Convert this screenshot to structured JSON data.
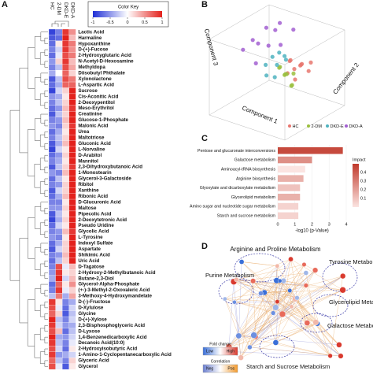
{
  "panel_labels": [
    "A",
    "B",
    "C",
    "D"
  ],
  "chart_data": [
    {
      "type": "heatmap",
      "title": "Color Key",
      "columns": [
        "HC",
        "2-DM",
        "DKD-E",
        "DKD-A"
      ],
      "rows": [
        "Lactic Acid",
        "Harmaline",
        "Hypoxanthine",
        "D-(+)-Fucose",
        "2-Hydroxyglutaric Acid",
        "N-Acetyl-D-Hexosamine",
        "Methyldopa",
        "Diisobutyl Phthalate",
        "Xylonolactone",
        "L-Aspartic Acid",
        "Sucrose",
        "Cis-Aconitic Acid",
        "2-Deoxypentitol",
        "Meso-Erythritol",
        "Creatinine",
        "Glucose-1-Phosphate",
        "Malonic Acid",
        "Urea",
        "Maltotriose",
        "Gluconic Acid",
        "L-Norvaline",
        "D-Arabitol",
        "Mannitol",
        "2,3-Dihydroxybutanoic Acid",
        "1-Monostearin",
        "Glycerol-3-Galactoside",
        "Ribitol",
        "Xanthine",
        "Ribonic Acid",
        "D-Glucuronic Acid",
        "Maltose",
        "Pipecolic Acid",
        "2-Deoxytetronic Acid",
        "Pseudo Uridine",
        "Glycolic Acid",
        "L-Tyrosine",
        "Indoxyl Sulfate",
        "Aspartate",
        "Shikimic Acid",
        "Uric Acid",
        "D-Tagatose",
        "2-Hydroxy-2-Methylbutanoic Acid",
        "Butane-2,3-Diol",
        "Glycerol-Alpha-Phosphate",
        "(+-)-3-Methyl-2-Oxovaleric Acid",
        "3-Methoxy-4-Hydroxymandelate",
        "D-(-)-Fructose",
        "D-Xylulose",
        "Glycine",
        "D-(+)-Xylose",
        "2,3-Bisphosphoglyceric Acid",
        "D-Lyxose",
        "1,4-Benzenedicarboxylic Acid",
        "Decanoic Acid(10:0)",
        "2-Hydroxyisobutyric Acid",
        "1-Amino-1-Cyclopentanecarboxylic Acid",
        "Glyceric Acid",
        "Glycerol"
      ],
      "values": [
        [
          -0.9,
          -0.6,
          0.9,
          0.5
        ],
        [
          -0.8,
          -0.7,
          1,
          0.3
        ],
        [
          -0.7,
          0.1,
          0.9,
          0.6
        ],
        [
          -0.6,
          -0.2,
          0.9,
          0.5
        ],
        [
          -0.7,
          -0.1,
          0.8,
          0.6
        ],
        [
          -0.5,
          0.2,
          0.9,
          0.3
        ],
        [
          -0.6,
          -0.3,
          0.8,
          0.4
        ],
        [
          -0.4,
          0,
          0.7,
          0.2
        ],
        [
          -0.8,
          -0.3,
          0.8,
          0.6
        ],
        [
          -0.7,
          -0.4,
          0.7,
          0.7
        ],
        [
          -0.9,
          -0.2,
          0.2,
          1
        ],
        [
          -0.5,
          -0.4,
          0.1,
          1
        ],
        [
          -0.6,
          -0.3,
          0.2,
          1
        ],
        [
          -0.7,
          -0.5,
          0.3,
          0.9
        ],
        [
          -0.8,
          -0.3,
          0.2,
          1
        ],
        [
          -0.6,
          -0.5,
          0.3,
          1
        ],
        [
          -0.5,
          -0.6,
          0.2,
          0.9
        ],
        [
          -0.7,
          -0.4,
          0.1,
          1
        ],
        [
          -0.6,
          -0.3,
          0.2,
          1
        ],
        [
          -0.8,
          -0.4,
          0.3,
          1
        ],
        [
          -0.9,
          -0.2,
          0.1,
          1
        ],
        [
          -0.7,
          -0.5,
          0.2,
          1
        ],
        [
          -0.6,
          -0.4,
          0.1,
          1
        ],
        [
          -0.8,
          -0.3,
          0.2,
          0.9
        ],
        [
          -0.5,
          -0.6,
          0.3,
          1
        ],
        [
          -0.7,
          -0.3,
          0.1,
          1
        ],
        [
          -0.6,
          -0.5,
          0.2,
          1
        ],
        [
          -0.8,
          -0.2,
          0.2,
          1
        ],
        [
          -0.7,
          -0.4,
          0.3,
          1
        ],
        [
          -0.6,
          -0.6,
          0.1,
          1
        ],
        [
          -0.5,
          -0.5,
          0.2,
          1
        ],
        [
          -0.8,
          -0.3,
          0.1,
          1
        ],
        [
          -0.9,
          -0.4,
          0.2,
          1
        ],
        [
          -0.7,
          -0.2,
          0.1,
          1
        ],
        [
          -0.6,
          -0.5,
          0.3,
          0.9
        ],
        [
          -0.5,
          -0.6,
          0.1,
          1
        ],
        [
          -0.7,
          -0.4,
          0.2,
          1
        ],
        [
          -0.8,
          -0.2,
          0.2,
          1
        ],
        [
          -0.6,
          -0.5,
          0.3,
          1
        ],
        [
          -0.7,
          -0.3,
          0.2,
          1
        ],
        [
          -0.6,
          0.8,
          -0.1,
          0.3
        ],
        [
          -0.5,
          0.9,
          0.1,
          0.2
        ],
        [
          -0.4,
          1,
          -0.2,
          0.3
        ],
        [
          -0.7,
          0.7,
          0.1,
          0.5
        ],
        [
          -0.6,
          0.9,
          -0.1,
          0.2
        ],
        [
          -0.3,
          0.6,
          -0.4,
          0.4
        ],
        [
          0.9,
          0.1,
          -0.6,
          -0.4
        ],
        [
          0.8,
          -0.1,
          -0.7,
          -0.2
        ],
        [
          0.7,
          0.2,
          -0.8,
          -0.3
        ],
        [
          1,
          -0.3,
          -0.6,
          -0.2
        ],
        [
          0.9,
          -0.2,
          -0.5,
          -0.4
        ],
        [
          0.8,
          0.3,
          -0.7,
          -0.3
        ],
        [
          1,
          -0.4,
          -0.5,
          -0.2
        ],
        [
          0.9,
          -0.3,
          -0.6,
          -0.1
        ],
        [
          0.8,
          -0.2,
          -0.7,
          0.1
        ],
        [
          0.9,
          -0.5,
          -0.4,
          -0.2
        ],
        [
          0.7,
          -0.3,
          -0.6,
          0.2
        ],
        [
          0.8,
          -0.1,
          -0.8,
          0.1
        ]
      ],
      "key_lim": [
        -1,
        1
      ],
      "key_ticks": [
        -1,
        -0.5,
        0,
        0.5,
        1
      ],
      "low_color": "#1f2fd6",
      "mid_color": "#ffffff",
      "high_color": "#e3211c"
    },
    {
      "type": "scatter3d",
      "axis_labels": [
        "Component 1",
        "Component 2",
        "Component 3"
      ],
      "series": [
        {
          "name": "HC",
          "color": "#e8776f",
          "points": [
            [
              0.3,
              0.2,
              0.1
            ],
            [
              0.4,
              0.3,
              0.2
            ],
            [
              0.2,
              0.1,
              0
            ],
            [
              0.5,
              0.2,
              0.3
            ],
            [
              0.3,
              0.4,
              0.1
            ],
            [
              0.1,
              0.3,
              0.2
            ],
            [
              0.4,
              0.1,
              -0.1
            ],
            [
              0.6,
              0.3,
              0.1
            ],
            [
              0.2,
              0.2,
              0.3
            ],
            [
              0.5,
              0.5,
              0.2
            ]
          ]
        },
        {
          "name": "2-DM",
          "color": "#9bbf3f",
          "points": [
            [
              0.2,
              0,
              0
            ],
            [
              0.1,
              0.2,
              -0.1
            ],
            [
              0.3,
              -0.1,
              0.1
            ],
            [
              0,
              0.1,
              0.1
            ],
            [
              0.4,
              0,
              -0.2
            ],
            [
              -0.1,
              0.2,
              0
            ],
            [
              0.2,
              0.3,
              -0.1
            ],
            [
              0.3,
              0.1,
              -0.3
            ]
          ]
        },
        {
          "name": "DKD-E",
          "color": "#4fb3bf",
          "points": [
            [
              0,
              0,
              0.2
            ],
            [
              -0.2,
              0.1,
              0.3
            ],
            [
              0.1,
              -0.2,
              0
            ],
            [
              -0.1,
              0.2,
              0.4
            ],
            [
              0.2,
              0,
              0.5
            ],
            [
              -0.3,
              0,
              0.1
            ],
            [
              0,
              0.3,
              0.2
            ],
            [
              -0.2,
              -0.1,
              -0.1
            ]
          ]
        },
        {
          "name": "DKD-A",
          "color": "#a25fd1",
          "points": [
            [
              -0.6,
              0.4,
              0.8
            ],
            [
              -0.4,
              0.6,
              0.9
            ],
            [
              -0.8,
              0.2,
              0.5
            ],
            [
              -0.5,
              0,
              0.6
            ],
            [
              -0.3,
              0.5,
              0.4
            ],
            [
              -0.7,
              0.6,
              0.2
            ],
            [
              -0.2,
              0.8,
              0.7
            ],
            [
              -0.9,
              0,
              0.3
            ],
            [
              -0.4,
              -0.2,
              0.2
            ],
            [
              -0.6,
              0.7,
              0.6
            ]
          ]
        }
      ]
    },
    {
      "type": "bar",
      "orientation": "horizontal",
      "x_label": "-log10 (p-Value)",
      "categories": [
        "Pentose and glucuronate interconversions",
        "Galactose metabolism",
        "Aminoacyl-tRNA biosynthesis",
        "Arginine biosynthesis",
        "Glyoxylate and dicarboxylate metabolism",
        "Glycerolipid metabolism",
        "Amino sugar and nucleotide sugar metabolism",
        "Starch and sucrose metabolism"
      ],
      "values": [
        3.8,
        2.0,
        1.6,
        1.5,
        1.3,
        1.3,
        1.2,
        1.2
      ],
      "impact": [
        0.45,
        0.25,
        0.0,
        0.15,
        0.1,
        0.15,
        0.05,
        0.05
      ],
      "impact_title": "Impact",
      "impact_lim": [
        0,
        0.5
      ],
      "impact_ticks": [
        0.4,
        0.3,
        0.2,
        0.1
      ],
      "low_color": "#fbe4e1",
      "high_color": "#c0392b",
      "xlim": [
        0,
        4
      ],
      "xticks": [
        0,
        1,
        2,
        3,
        4
      ]
    }
  ],
  "network": {
    "pathways": [
      "Arginine and Proline Metabolism",
      "Tyrosine Metabolism",
      "Purine Metabolism",
      "Glycerolipid Metabolism",
      "Galactose Metabolism",
      "Starch and Sucrose Metabolism"
    ],
    "legend": {
      "fold_title": "Fold change",
      "fold": [
        "Low",
        "High"
      ],
      "corr_title": "Correlation",
      "corr": [
        "Neg",
        "Pos"
      ]
    }
  }
}
